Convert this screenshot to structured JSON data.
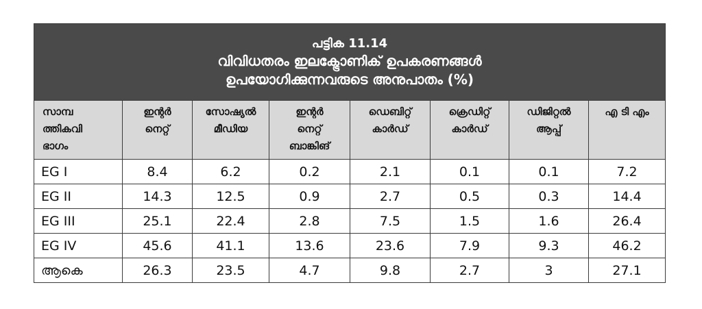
{
  "table": {
    "title_number": "പട്ടിക 11.14",
    "title_line1": "വിവിധതരം ഇലക്ട്രോണിക് ഉപകരണങ്ങൾ",
    "title_line2": "ഉപയോഗിക്കുന്നവരുടെ അനുപാതം (%)",
    "headers": [
      [
        "സാമ്പ",
        "ത്തികവി",
        "ഭാഗം"
      ],
      [
        "ഇന്റർ",
        "നെറ്റ്"
      ],
      [
        "സോഷ്യൽ",
        "മീഡിയ"
      ],
      [
        "ഇന്റർ",
        "നെറ്റ്",
        "ബാങ്കിങ്"
      ],
      [
        "ഡെബിറ്റ്",
        "കാർഡ്"
      ],
      [
        "ക്രെഡിറ്റ്",
        "കാർഡ്"
      ],
      [
        "ഡിജിറ്റൽ",
        "ആപ്പ്"
      ],
      [
        "എ ടി എം"
      ]
    ],
    "rows": [
      [
        "EG I",
        "8.4",
        "6.2",
        "0.2",
        "2.1",
        "0.1",
        "0.1",
        "7.2"
      ],
      [
        "EG II",
        "14.3",
        "12.5",
        "0.9",
        "2.7",
        "0.5",
        "0.3",
        "14.4"
      ],
      [
        "EG III",
        "25.1",
        "22.4",
        "2.8",
        "7.5",
        "1.5",
        "1.6",
        "26.4"
      ],
      [
        "EG IV",
        "45.6",
        "41.1",
        "13.6",
        "23.6",
        "7.9",
        "9.3",
        "46.2"
      ],
      [
        "ആകെ",
        "26.3",
        "23.5",
        "4.7",
        "9.8",
        "2.7",
        "3",
        "27.1"
      ]
    ]
  }
}
